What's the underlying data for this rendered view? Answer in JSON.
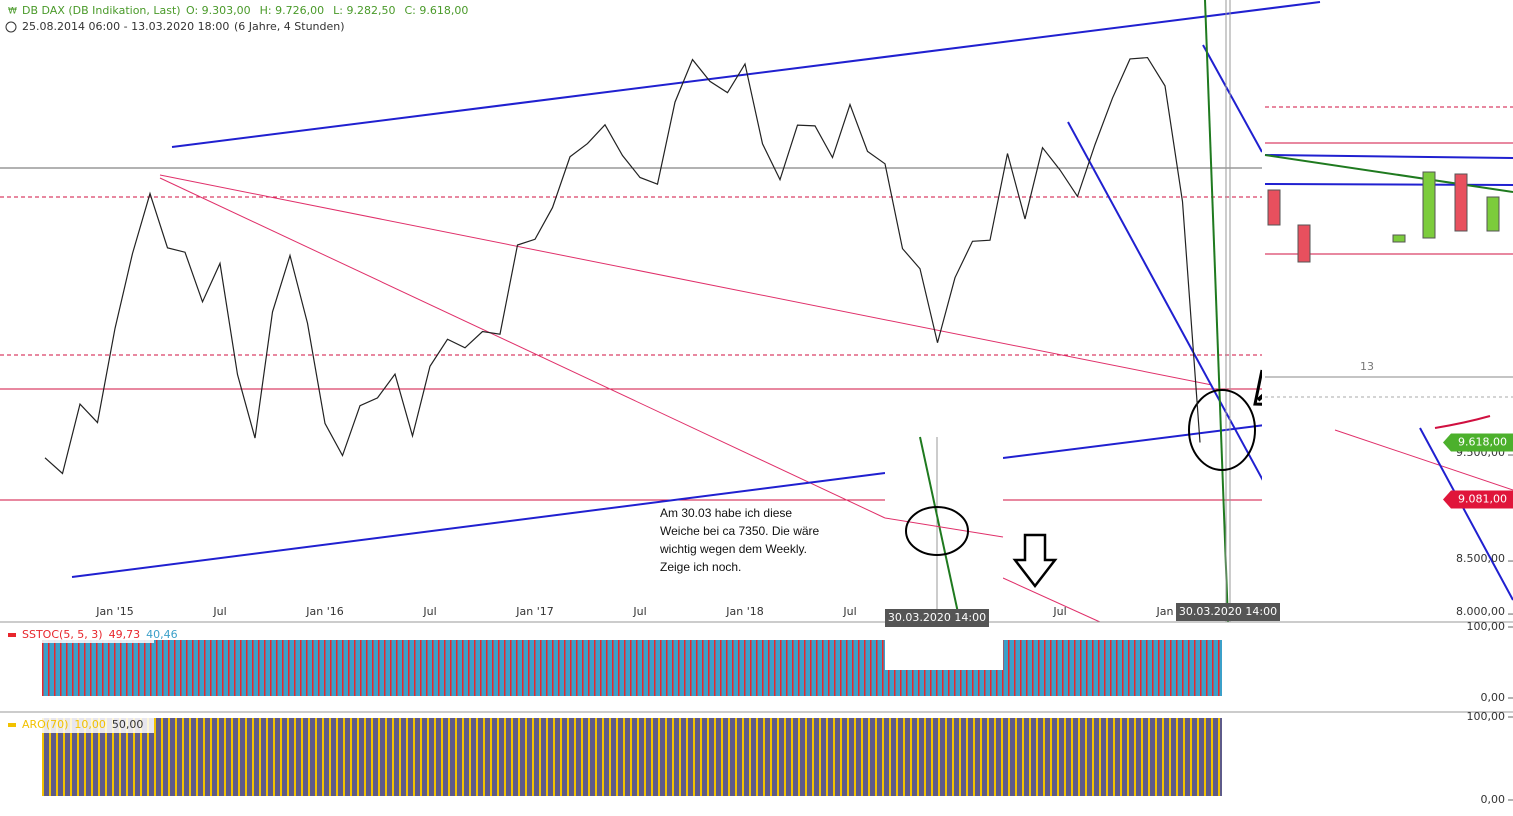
{
  "chart_data": [
    {
      "type": "line",
      "title": "DB DAX (DB Indikation, Last)",
      "ohlc": [
        "O: 9.303,00",
        "H: 9.726,00",
        "L: 9.282,50",
        "C: 9.618,00"
      ],
      "date_range": "25.08.2014 06:00 - 13.03.2020 18:00",
      "period": "(6 Jahre, 4 Stunden)",
      "categories": [
        null,
        null,
        null,
        null,
        "Jan '15",
        null,
        null,
        null,
        null,
        null,
        "Jul",
        null,
        null,
        null,
        null,
        null,
        "Jan '16",
        null,
        null,
        null,
        null,
        null,
        "Jul",
        null,
        null,
        null,
        null,
        null,
        "Jan '17",
        null,
        null,
        null,
        null,
        null,
        "Jul",
        null,
        null,
        null,
        null,
        null,
        "Jan '18",
        null,
        null,
        null,
        null,
        null,
        "Jul",
        null,
        null,
        null,
        null,
        null,
        null,
        null,
        null,
        null,
        null,
        null,
        "Jul",
        null,
        null,
        null,
        null,
        null,
        "Jan",
        null,
        null
      ],
      "values": [
        9474,
        9326,
        9980,
        9806,
        10694,
        11401,
        11966,
        11454,
        11413,
        10945,
        11308,
        10259,
        9660,
        10850,
        11382,
        10743,
        9798,
        9495,
        9965,
        10039,
        10263,
        9680,
        10337,
        10592,
        10511,
        10665,
        10640,
        11481,
        11535,
        11834,
        12313,
        12438,
        12615,
        12325,
        12118,
        12055,
        12829,
        13230,
        13024,
        12918,
        13189,
        12436,
        12097,
        12612,
        12605,
        12306,
        12806,
        12364,
        12247,
        11447,
        11257,
        10559,
        11173,
        11516,
        11526,
        12344,
        11727,
        12399,
        12189,
        11939,
        12428,
        12867,
        13236,
        13249,
        12982,
        11890,
        9618
      ],
      "color": "#222222",
      "ylim": [
        7925,
        13792
      ],
      "yticks": [
        {
          "value": 8000,
          "label": "8.000,00"
        },
        {
          "value": 8500,
          "label": "8.500,00"
        },
        {
          "value": 9500,
          "label": "9.500,00"
        }
      ],
      "price_tags": [
        {
          "value": 9618,
          "label": "9.618,00",
          "color": "#4cb02c"
        },
        {
          "value": 9081,
          "label": "9.081,00",
          "color": "#e0153a"
        }
      ],
      "crosshair_labels": [
        "30.03.2020 14:00",
        "30.03.2020 14:00"
      ],
      "annotations": [
        "Am 30.03 habe ich diese",
        "Weiche bei ca 7350. Die wäre",
        "wichtig wegen dem Weekly.",
        "Zeige ich noch."
      ],
      "inset_label": "13"
    },
    {
      "type": "oscillator",
      "title": "SSTOC(5, 5, 3)",
      "legend_values": [
        "49,73",
        "40,46"
      ],
      "colors": [
        "#e8262c",
        "#3ba0c9"
      ],
      "ylim": [
        0,
        100
      ],
      "yticks": [
        {
          "value": 100,
          "label": "100,00"
        },
        {
          "value": 0,
          "label": "0,00"
        }
      ]
    },
    {
      "type": "oscillator",
      "title": "ARO(70)",
      "legend_values": [
        "10,00",
        "50,00"
      ],
      "colors": [
        "#f2c200",
        "#5e5b8a"
      ],
      "ylim": [
        0,
        100
      ],
      "yticks": [
        {
          "value": 100,
          "label": "100,00"
        },
        {
          "value": 0,
          "label": "0,00"
        }
      ]
    }
  ]
}
